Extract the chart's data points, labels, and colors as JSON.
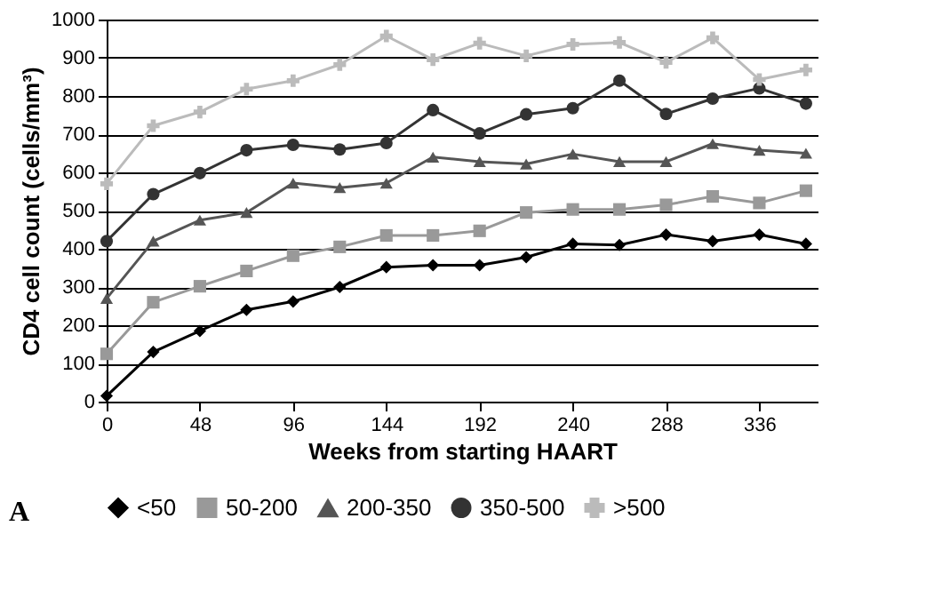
{
  "chart_data": {
    "type": "line",
    "xlabel": "Weeks from starting HAART",
    "ylabel": "CD4 cell count (cells/mm³)",
    "x": [
      0,
      24,
      48,
      72,
      96,
      120,
      144,
      168,
      192,
      216,
      240,
      264,
      288,
      312,
      336,
      360
    ],
    "series": [
      {
        "name": "<50",
        "color": "#000000",
        "marker": "diamond",
        "values": [
          15,
          130,
          185,
          240,
          262,
          300,
          352,
          357,
          357,
          378,
          413,
          410,
          437,
          420,
          437,
          413
        ]
      },
      {
        "name": "50-200",
        "color": "#999999",
        "marker": "square",
        "values": [
          125,
          260,
          302,
          342,
          382,
          405,
          435,
          435,
          447,
          495,
          503,
          503,
          515,
          537,
          520,
          552
        ]
      },
      {
        "name": "200-350",
        "color": "#555555",
        "marker": "triangle",
        "values": [
          270,
          420,
          475,
          495,
          572,
          560,
          572,
          640,
          628,
          622,
          648,
          628,
          628,
          675,
          658,
          650
        ]
      },
      {
        "name": "350-500",
        "color": "#333333",
        "marker": "circle",
        "values": [
          420,
          543,
          598,
          658,
          672,
          660,
          677,
          763,
          702,
          752,
          768,
          840,
          753,
          793,
          820,
          780
        ]
      },
      {
        "name": ">500",
        "color": "#bbbbbb",
        "marker": "cross",
        "values": [
          570,
          722,
          758,
          818,
          840,
          882,
          957,
          895,
          938,
          905,
          935,
          940,
          888,
          952,
          843,
          868
        ]
      }
    ],
    "xlim": [
      0,
      366
    ],
    "xticks": [
      0,
      48,
      96,
      144,
      192,
      240,
      288,
      336
    ],
    "ylim": [
      0,
      1000
    ],
    "yticks": [
      0,
      100,
      200,
      300,
      400,
      500,
      600,
      700,
      800,
      900,
      1000
    ],
    "grid": "y",
    "legend": "bottom",
    "line_style": "solid",
    "annotations": [
      "A"
    ]
  }
}
